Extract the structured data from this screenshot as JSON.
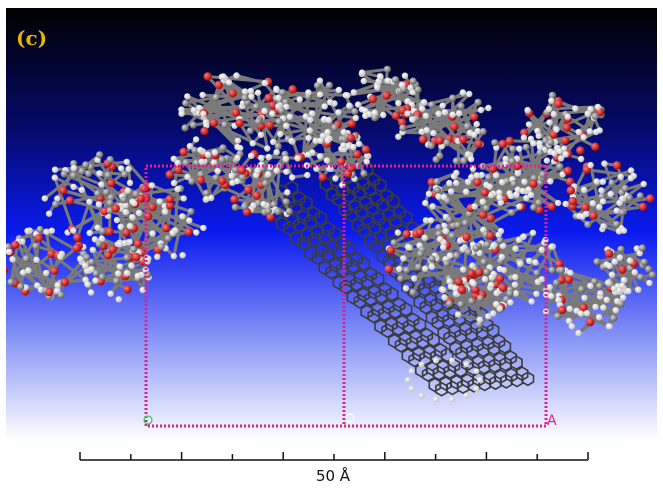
{
  "figure": {
    "panel_label": "(c)",
    "scale_bar_label": "50 Å",
    "cell_axis_labels": {
      "a": "A"
    },
    "colors": {
      "background_top": "#000000",
      "background_mid": "#0a1af0",
      "background_bottom": "#ffffff",
      "carbon": "#8a8a8a",
      "oxygen": "#dd1111",
      "hydrogen": "#ffffff",
      "cell_box": "#e0208f",
      "panel_label": "#e8b800"
    },
    "atom_types": [
      "carbon-atom",
      "oxygen-atom",
      "hydrogen-atom"
    ],
    "scale_ticks": 10
  }
}
